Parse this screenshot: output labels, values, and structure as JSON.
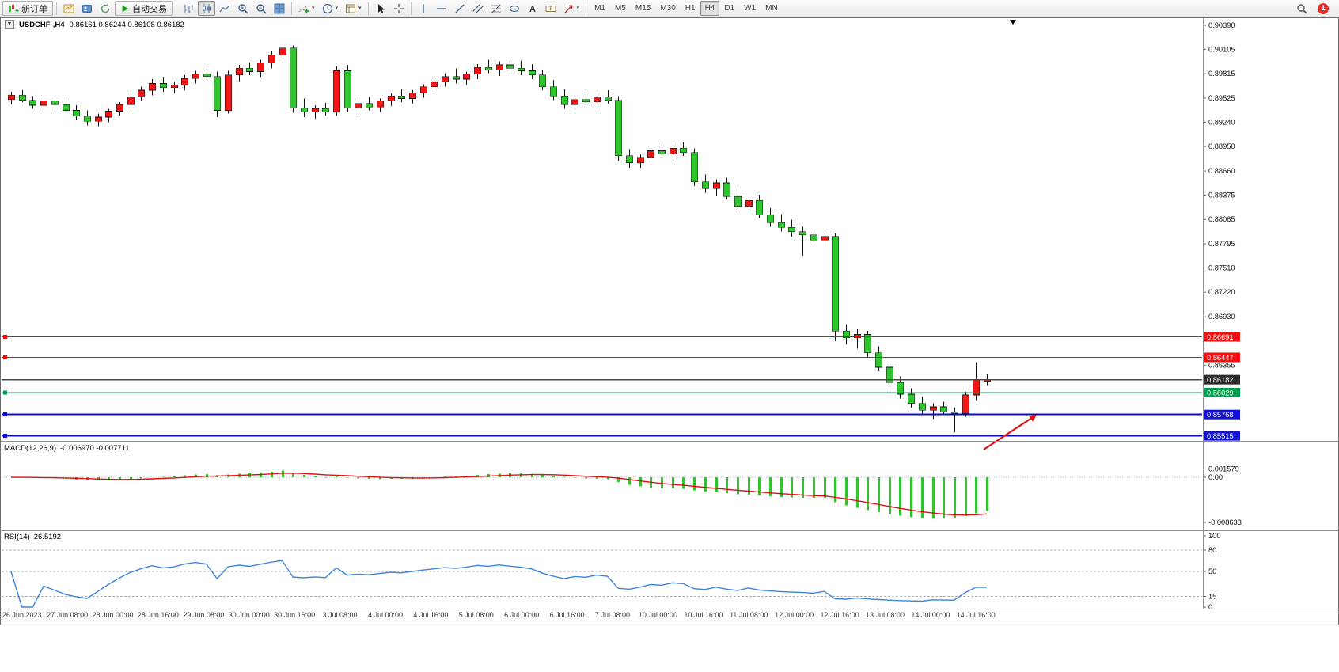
{
  "toolbar": {
    "new_order": "新订单",
    "auto_trading": "自动交易",
    "timeframes": [
      "M1",
      "M5",
      "M15",
      "M30",
      "H1",
      "H4",
      "D1",
      "W1",
      "MN"
    ],
    "active_timeframe": "H4",
    "notification_count": "1",
    "icons": [
      "new-order",
      "new-chart",
      "profiles",
      "refresh",
      "auto-trading-play",
      "bar-chart",
      "candlesticks",
      "line-chart",
      "zoom-in",
      "zoom-out",
      "tile-windows",
      "indicators",
      "periods-clock",
      "templates",
      "cursor",
      "crosshair",
      "vertical-line",
      "horizontal-line",
      "trendline",
      "equidistant-channel",
      "fibonacci",
      "shapes",
      "text",
      "label",
      "arrows",
      "search",
      "notification"
    ]
  },
  "chart": {
    "symbol_title": "USDCHF-,H4",
    "ohlc_readout": "0.86161 0.86244 0.86108 0.86182",
    "axis_labels": [
      "0.90390",
      "0.90105",
      "0.89815",
      "0.89525",
      "0.89240",
      "0.88950",
      "0.88660",
      "0.88375",
      "0.88085",
      "0.87795",
      "0.87510",
      "0.87220",
      "0.86930",
      "0.86355"
    ],
    "levels": [
      {
        "price": 0.86691,
        "label": "0.86691",
        "color": "red"
      },
      {
        "price": 0.86447,
        "label": "0.86447",
        "color": "red"
      },
      {
        "price": 0.86182,
        "label": "0.86182",
        "color": "current"
      },
      {
        "price": 0.86029,
        "label": "0.86029",
        "color": "green"
      },
      {
        "price": 0.85768,
        "label": "0.85768",
        "color": "blue"
      },
      {
        "price": 0.85515,
        "label": "0.85515",
        "color": "blue"
      }
    ],
    "colors": {
      "up": "#f21515",
      "down": "#2dc62d",
      "wick": "#111111",
      "line_red": "#ff0000",
      "line_green": "#00a050",
      "line_blue": "#0d0dcf",
      "line_current": "#4a4a4a",
      "box_red": "#f50f0f",
      "box_green": "#00a050",
      "box_blue": "#1212d6",
      "box_current": "#2b2b2b",
      "macd_hist": "#2dc62d",
      "macd_signal": "#e01010",
      "rsi_line": "#3d85dd"
    }
  },
  "chart_data": {
    "type": "candlestick",
    "title": "USDCHF-,H4",
    "symbol": "USDCHF",
    "timeframe": "H4",
    "price_range": [
      0.854,
      0.9039
    ],
    "candles": [
      [
        0.8951,
        0.896,
        0.8945,
        0.8956
      ],
      [
        0.8956,
        0.8962,
        0.8948,
        0.895
      ],
      [
        0.895,
        0.8955,
        0.894,
        0.8944
      ],
      [
        0.8944,
        0.8952,
        0.8938,
        0.8949
      ],
      [
        0.8949,
        0.8953,
        0.8941,
        0.8945
      ],
      [
        0.8945,
        0.895,
        0.8934,
        0.8938
      ],
      [
        0.8938,
        0.8944,
        0.8927,
        0.8931
      ],
      [
        0.8931,
        0.8938,
        0.892,
        0.8925
      ],
      [
        0.8925,
        0.8934,
        0.8919,
        0.893
      ],
      [
        0.893,
        0.894,
        0.8924,
        0.8937
      ],
      [
        0.8937,
        0.8948,
        0.8932,
        0.8945
      ],
      [
        0.8945,
        0.8958,
        0.894,
        0.8954
      ],
      [
        0.8954,
        0.8966,
        0.8949,
        0.8962
      ],
      [
        0.8962,
        0.8975,
        0.8956,
        0.897
      ],
      [
        0.897,
        0.8978,
        0.896,
        0.8965
      ],
      [
        0.8965,
        0.8972,
        0.8958,
        0.8968
      ],
      [
        0.8968,
        0.898,
        0.8962,
        0.8976
      ],
      [
        0.8976,
        0.8985,
        0.897,
        0.8981
      ],
      [
        0.8981,
        0.899,
        0.8974,
        0.8978
      ],
      [
        0.8978,
        0.8984,
        0.893,
        0.8938
      ],
      [
        0.8938,
        0.8985,
        0.8934,
        0.898
      ],
      [
        0.898,
        0.8992,
        0.8972,
        0.8988
      ],
      [
        0.8988,
        0.8995,
        0.898,
        0.8984
      ],
      [
        0.8984,
        0.8998,
        0.8978,
        0.8994
      ],
      [
        0.8994,
        0.9008,
        0.8988,
        0.9004
      ],
      [
        0.9004,
        0.9016,
        0.8998,
        0.9012
      ],
      [
        0.9012,
        0.9015,
        0.8935,
        0.8941
      ],
      [
        0.8941,
        0.8952,
        0.893,
        0.8936
      ],
      [
        0.8936,
        0.8944,
        0.8928,
        0.894
      ],
      [
        0.894,
        0.8947,
        0.8932,
        0.8936
      ],
      [
        0.8936,
        0.899,
        0.8932,
        0.8985
      ],
      [
        0.8985,
        0.8992,
        0.8936,
        0.8941
      ],
      [
        0.8941,
        0.895,
        0.8933,
        0.8946
      ],
      [
        0.8946,
        0.8954,
        0.8938,
        0.8942
      ],
      [
        0.8942,
        0.8952,
        0.8936,
        0.8949
      ],
      [
        0.8949,
        0.8958,
        0.8943,
        0.8955
      ],
      [
        0.8955,
        0.8963,
        0.8948,
        0.8952
      ],
      [
        0.8952,
        0.8962,
        0.8946,
        0.8959
      ],
      [
        0.8959,
        0.8969,
        0.8953,
        0.8966
      ],
      [
        0.8966,
        0.8976,
        0.896,
        0.8972
      ],
      [
        0.8972,
        0.8982,
        0.8966,
        0.8978
      ],
      [
        0.8978,
        0.8988,
        0.897,
        0.8975
      ],
      [
        0.8975,
        0.8984,
        0.8968,
        0.8981
      ],
      [
        0.8981,
        0.8993,
        0.8975,
        0.8989
      ],
      [
        0.8989,
        0.8998,
        0.8982,
        0.8986
      ],
      [
        0.8986,
        0.8996,
        0.8979,
        0.8992
      ],
      [
        0.8992,
        0.9,
        0.8984,
        0.8988
      ],
      [
        0.8988,
        0.8997,
        0.898,
        0.8985
      ],
      [
        0.8985,
        0.8993,
        0.8975,
        0.898
      ],
      [
        0.898,
        0.8986,
        0.8962,
        0.8966
      ],
      [
        0.8966,
        0.8974,
        0.895,
        0.8955
      ],
      [
        0.8955,
        0.8963,
        0.894,
        0.8945
      ],
      [
        0.8945,
        0.8956,
        0.8938,
        0.8951
      ],
      [
        0.8951,
        0.896,
        0.8944,
        0.8948
      ],
      [
        0.8948,
        0.8958,
        0.8941,
        0.8954
      ],
      [
        0.8954,
        0.8962,
        0.8946,
        0.895
      ],
      [
        0.895,
        0.8955,
        0.8878,
        0.8884
      ],
      [
        0.8884,
        0.8892,
        0.887,
        0.8876
      ],
      [
        0.8876,
        0.8886,
        0.887,
        0.8882
      ],
      [
        0.8882,
        0.8895,
        0.8876,
        0.889
      ],
      [
        0.889,
        0.8902,
        0.8882,
        0.8886
      ],
      [
        0.8886,
        0.8898,
        0.8878,
        0.8893
      ],
      [
        0.8893,
        0.89,
        0.8884,
        0.8888
      ],
      [
        0.8888,
        0.8893,
        0.8848,
        0.8853
      ],
      [
        0.8853,
        0.8862,
        0.884,
        0.8845
      ],
      [
        0.8845,
        0.8856,
        0.8836,
        0.8852
      ],
      [
        0.8852,
        0.8858,
        0.8832,
        0.8836
      ],
      [
        0.8836,
        0.8844,
        0.882,
        0.8824
      ],
      [
        0.8824,
        0.8836,
        0.8816,
        0.8831
      ],
      [
        0.8831,
        0.8838,
        0.881,
        0.8814
      ],
      [
        0.8814,
        0.8822,
        0.88,
        0.8805
      ],
      [
        0.8805,
        0.8815,
        0.8794,
        0.8799
      ],
      [
        0.8799,
        0.8808,
        0.8788,
        0.8794
      ],
      [
        0.8794,
        0.88,
        0.8765,
        0.879
      ],
      [
        0.879,
        0.8797,
        0.878,
        0.8784
      ],
      [
        0.8784,
        0.8792,
        0.8776,
        0.8788
      ],
      [
        0.8788,
        0.8792,
        0.8664,
        0.8676
      ],
      [
        0.8676,
        0.8684,
        0.866,
        0.8668
      ],
      [
        0.8668,
        0.8678,
        0.8655,
        0.8672
      ],
      [
        0.8672,
        0.8676,
        0.8645,
        0.865
      ],
      [
        0.865,
        0.8658,
        0.8628,
        0.8633
      ],
      [
        0.8633,
        0.864,
        0.861,
        0.8615
      ],
      [
        0.8615,
        0.8622,
        0.8596,
        0.8601
      ],
      [
        0.8601,
        0.8608,
        0.8585,
        0.859
      ],
      [
        0.859,
        0.8598,
        0.8578,
        0.8582
      ],
      [
        0.8582,
        0.859,
        0.8572,
        0.8586
      ],
      [
        0.8586,
        0.8592,
        0.8576,
        0.858
      ],
      [
        0.858,
        0.8585,
        0.8556,
        0.8578
      ],
      [
        0.8578,
        0.8604,
        0.8574,
        0.86
      ],
      [
        0.86,
        0.8639,
        0.8594,
        0.8618
      ],
      [
        0.86161,
        0.86244,
        0.86108,
        0.86182
      ]
    ]
  },
  "macd": {
    "title": "MACD(12,26,9)",
    "values_text": "-0.006970 -0.007711",
    "params": [
      12,
      26,
      9
    ],
    "axis": [
      "0.001579",
      "0.00",
      "-0.008633"
    ]
  },
  "rsi": {
    "title": "RSI(14)",
    "value_text": "26.5192",
    "period": 14,
    "levels": [
      80,
      50,
      15
    ],
    "axis": [
      "100",
      "80",
      "50",
      "15",
      "0"
    ]
  },
  "time_axis": [
    "26 Jun 2023",
    "27 Jun 08:00",
    "28 Jun 00:00",
    "28 Jun 16:00",
    "29 Jun 08:00",
    "30 Jun 00:00",
    "30 Jun 16:00",
    "3 Jul 08:00",
    "4 Jul 00:00",
    "4 Jul 16:00",
    "5 Jul 08:00",
    "6 Jul 00:00",
    "6 Jul 16:00",
    "7 Jul 08:00",
    "10 Jul 00:00",
    "10 Jul 16:00",
    "11 Jul 08:00",
    "12 Jul 00:00",
    "12 Jul 16:00",
    "13 Jul 08:00",
    "14 Jul 00:00",
    "14 Jul 16:00"
  ],
  "annotation": {
    "type": "arrow",
    "color": "#e01010"
  }
}
